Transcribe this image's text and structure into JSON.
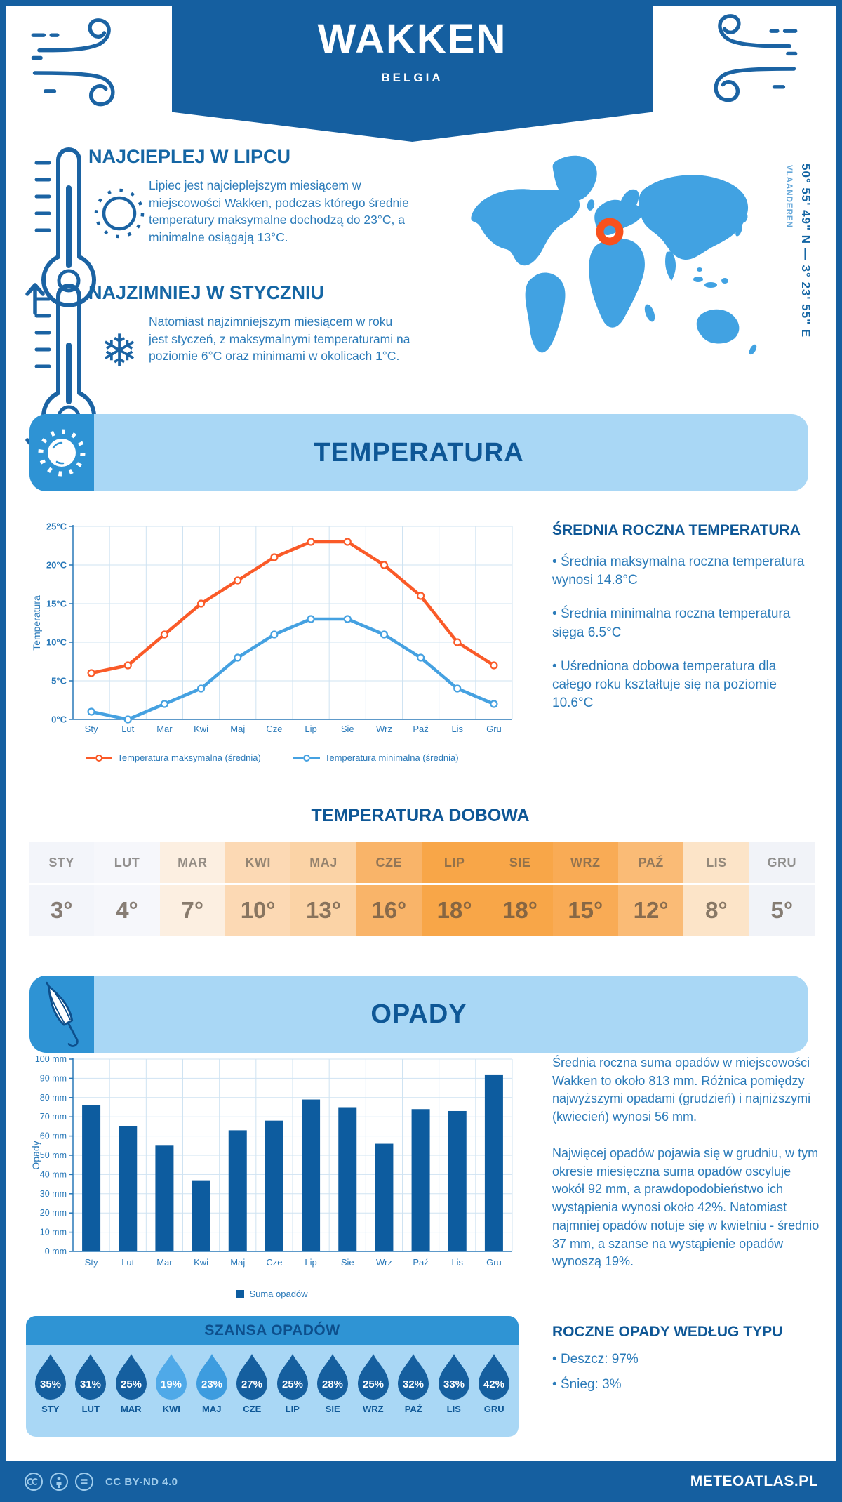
{
  "header": {
    "title": "WAKKEN",
    "subtitle": "BELGIA"
  },
  "location": {
    "coordinates": "50° 55' 49\" N — 3° 23' 55\" E",
    "region": "VLAANDEREN"
  },
  "highlights": {
    "warm": {
      "title": "NAJCIEPLEJ W LIPCU",
      "text": "Lipiec jest najcieplejszym miesiącem w miejscowości Wakken, podczas którego średnie temperatury maksymalne dochodzą do 23°C, a minimalne osiągają 13°C."
    },
    "cold": {
      "title": "NAJZIMNIEJ W STYCZNIU",
      "text": "Natomiast najzimniejszym miesiącem w roku jest styczeń, z maksymalnymi temperaturami na poziomie 6°C oraz minimami w okolicach 1°C."
    }
  },
  "temperature_section": {
    "title": "TEMPERATURA",
    "annual": {
      "title": "ŚREDNIA ROCZNA TEMPERATURA",
      "bullets": [
        "Średnia maksymalna roczna temperatura wynosi 14.8°C",
        "Średnia minimalna roczna temperatura sięga 6.5°C",
        "Uśredniona dobowa temperatura dla całego roku kształtuje się na poziomie 10.6°C"
      ]
    }
  },
  "daily_temperature": {
    "title": "TEMPERATURA DOBOWA",
    "months": [
      "STY",
      "LUT",
      "MAR",
      "KWI",
      "MAJ",
      "CZE",
      "LIP",
      "SIE",
      "WRZ",
      "PAŹ",
      "LIS",
      "GRU"
    ],
    "values": [
      "3°",
      "4°",
      "7°",
      "10°",
      "13°",
      "16°",
      "18°",
      "18°",
      "15°",
      "12°",
      "8°",
      "5°"
    ],
    "cell_colors": [
      "#f3f5fa",
      "#f6f7fb",
      "#fcefe1",
      "#fcd9b4",
      "#fbd3a6",
      "#f9b469",
      "#f8a648",
      "#f8a648",
      "#f9ab55",
      "#fabb76",
      "#fce4c8",
      "#f1f3f8"
    ]
  },
  "precipitation_section": {
    "title": "OPADY",
    "legend": "Suma opadów",
    "paragraphs": [
      "Średnia roczna suma opadów w miejscowości Wakken to około 813 mm. Różnica pomiędzy najwyższymi opadami (grudzień) i najniższymi (kwiecień) wynosi 56 mm.",
      "Najwięcej opadów pojawia się w grudniu, w tym okresie miesięczna suma opadów oscyluje wokół 92 mm, a prawdopodobieństwo ich wystąpienia wynosi około 42%. Natomiast najmniej opadów notuje się w kwietniu - średnio 37 mm, a szanse na wystąpienie opadów wynoszą 19%."
    ],
    "by_type": {
      "title": "ROCZNE OPADY WEDŁUG TYPU",
      "bullets": [
        "Deszcz: 97%",
        "Śnieg: 3%"
      ]
    }
  },
  "rain_chance": {
    "title": "SZANSA OPADÓW",
    "months": [
      "STY",
      "LUT",
      "MAR",
      "KWI",
      "MAJ",
      "CZE",
      "LIP",
      "SIE",
      "WRZ",
      "PAŹ",
      "LIS",
      "GRU"
    ],
    "values": [
      "35%",
      "31%",
      "25%",
      "19%",
      "23%",
      "27%",
      "25%",
      "28%",
      "25%",
      "32%",
      "33%",
      "42%"
    ],
    "drop_colors": [
      "#155f9f",
      "#155f9f",
      "#155f9f",
      "#4fa9e8",
      "#3d9cdf",
      "#155f9f",
      "#155f9f",
      "#155f9f",
      "#155f9f",
      "#155f9f",
      "#155f9f",
      "#155f9f"
    ]
  },
  "footer": {
    "license": "CC BY-ND 4.0",
    "brand": "METEOATLAS.PL"
  },
  "theme": {
    "primary_blue": "#155fa0",
    "band_light_blue": "#a9d7f5",
    "band_icon_blue": "#2e93d4",
    "heading_blue": "#0e5796",
    "body_text_blue": "#2b7bb9",
    "map_blue": "#41a2e2",
    "marker_orange": "#f8511d",
    "grid_color": "#cfe3f2",
    "axis_color": "#2878b8"
  },
  "chart_data": [
    {
      "type": "line",
      "title": "TEMPERATURA",
      "categories": [
        "Sty",
        "Lut",
        "Mar",
        "Kwi",
        "Maj",
        "Cze",
        "Lip",
        "Sie",
        "Wrz",
        "Paź",
        "Lis",
        "Gru"
      ],
      "series": [
        {
          "name": "Temperatura maksymalna (średnia)",
          "color": "#fa5a28",
          "values": [
            6,
            7,
            11,
            15,
            18,
            21,
            23,
            23,
            20,
            16,
            10,
            7
          ]
        },
        {
          "name": "Temperatura minimalna (średnia)",
          "color": "#45a1e1",
          "values": [
            1,
            0,
            2,
            4,
            8,
            11,
            13,
            13,
            11,
            8,
            4,
            2
          ]
        }
      ],
      "ylabel": "Temperatura",
      "xlabel": "",
      "ylim": [
        0,
        25
      ],
      "ytick_step": 5,
      "yticks": [
        "0°C",
        "5°C",
        "10°C",
        "15°C",
        "20°C",
        "25°C"
      ],
      "grid": true,
      "legend_position": "bottom"
    },
    {
      "type": "bar",
      "title": "OPADY",
      "categories": [
        "Sty",
        "Lut",
        "Mar",
        "Kwi",
        "Maj",
        "Cze",
        "Lip",
        "Sie",
        "Wrz",
        "Paź",
        "Lis",
        "Gru"
      ],
      "values": [
        76,
        65,
        55,
        37,
        63,
        68,
        79,
        75,
        56,
        74,
        73,
        92
      ],
      "ylabel": "Opady",
      "xlabel": "",
      "ylim": [
        0,
        100
      ],
      "ytick_step": 10,
      "yticks": [
        "0 mm",
        "10 mm",
        "20 mm",
        "30 mm",
        "40 mm",
        "50 mm",
        "60 mm",
        "70 mm",
        "80 mm",
        "90 mm",
        "100 mm"
      ],
      "bar_color": "#0d5c9f",
      "grid": true,
      "legend": "Suma opadów",
      "legend_position": "bottom"
    }
  ]
}
